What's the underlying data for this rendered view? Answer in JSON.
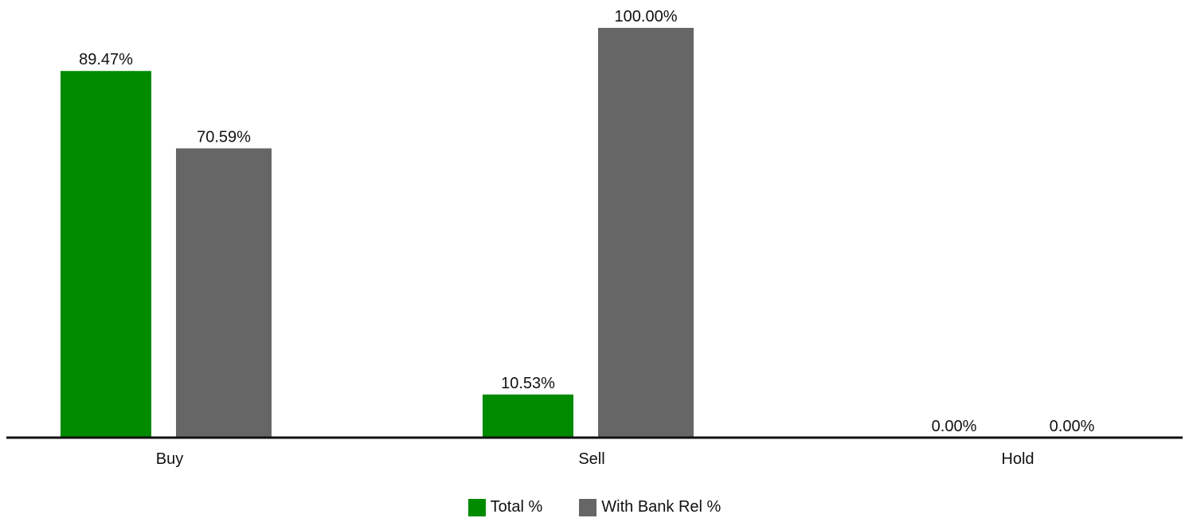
{
  "chart_data": {
    "type": "bar",
    "categories": [
      "Buy",
      "Sell",
      "Hold"
    ],
    "series": [
      {
        "name": "Total %",
        "color": "#008a00",
        "values": [
          89.47,
          10.53,
          0.0
        ],
        "labels": [
          "89.47%",
          "10.53%",
          "0.00%"
        ]
      },
      {
        "name": "With Bank Rel %",
        "color": "#666666",
        "values": [
          70.59,
          100.0,
          0.0
        ],
        "labels": [
          "70.59%",
          "100.00%",
          "0.00%"
        ]
      }
    ],
    "ylim": [
      0,
      100
    ],
    "grid": false,
    "legend_position": "bottom-center"
  }
}
